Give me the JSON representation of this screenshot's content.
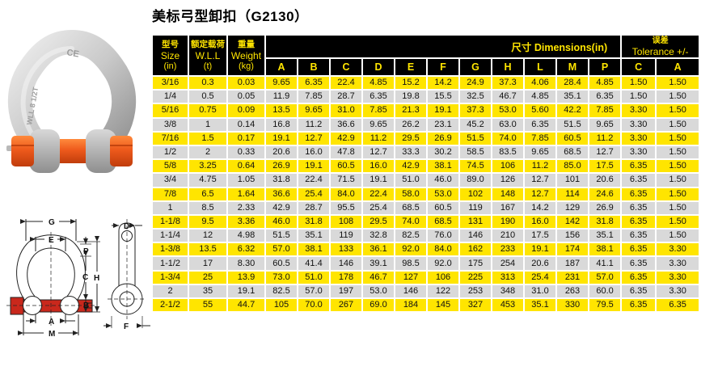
{
  "title": "美标弓型卸扣（G2130）",
  "colors": {
    "row_yellow": "#ffe500",
    "row_gray": "#d9d9d9",
    "header_bg": "#000000",
    "header_text": "#ffe500",
    "drawing_pin_red": "#c9281c",
    "photo_pin_orange": "#e8541e"
  },
  "photo": {
    "description": "galvanized bow shackle with orange safety bolt pin",
    "markings": {
      "ce": "CE",
      "wll": "WLL 8 1/2T"
    }
  },
  "diagram": {
    "description": "dimension drawing of bow shackle (front view) and pin (side view)",
    "labels": {
      "g": "G",
      "e": "E",
      "p": "P",
      "c": "C",
      "h": "H",
      "b": "B",
      "a": "A",
      "m": "M",
      "d": "D",
      "f": "F"
    }
  },
  "table": {
    "headers": {
      "size_zh": "型号",
      "size_en": "Size",
      "size_unit": "(in)",
      "wll_zh": "额定载荷",
      "wll_en": "W.L.L",
      "wll_unit": "(t)",
      "weight_zh": "重量",
      "weight_en": "Weight",
      "weight_unit": "(kg)",
      "dimensions": "尺寸  Dimensions(in)",
      "tolerance_zh": "误差",
      "tolerance_en": "Tolerance +/-",
      "dim_letters": [
        "A",
        "B",
        "C",
        "D",
        "E",
        "F",
        "G",
        "H",
        "L",
        "M",
        "P"
      ],
      "tol_letters": [
        "C",
        "A"
      ]
    },
    "rows": [
      [
        "3/16",
        "0.3",
        "0.03",
        "9.65",
        "6.35",
        "22.4",
        "4.85",
        "15.2",
        "14.2",
        "24.9",
        "37.3",
        "4.06",
        "28.4",
        "4.85",
        "1.50",
        "1.50"
      ],
      [
        "1/4",
        "0.5",
        "0.05",
        "11.9",
        "7.85",
        "28.7",
        "6.35",
        "19.8",
        "15.5",
        "32.5",
        "46.7",
        "4.85",
        "35.1",
        "6.35",
        "1.50",
        "1.50"
      ],
      [
        "5/16",
        "0.75",
        "0.09",
        "13.5",
        "9.65",
        "31.0",
        "7.85",
        "21.3",
        "19.1",
        "37.3",
        "53.0",
        "5.60",
        "42.2",
        "7.85",
        "3.30",
        "1.50"
      ],
      [
        "3/8",
        "1",
        "0.14",
        "16.8",
        "11.2",
        "36.6",
        "9.65",
        "26.2",
        "23.1",
        "45.2",
        "63.0",
        "6.35",
        "51.5",
        "9.65",
        "3.30",
        "1.50"
      ],
      [
        "7/16",
        "1.5",
        "0.17",
        "19.1",
        "12.7",
        "42.9",
        "11.2",
        "29.5",
        "26.9",
        "51.5",
        "74.0",
        "7.85",
        "60.5",
        "11.2",
        "3.30",
        "1.50"
      ],
      [
        "1/2",
        "2",
        "0.33",
        "20.6",
        "16.0",
        "47.8",
        "12.7",
        "33.3",
        "30.2",
        "58.5",
        "83.5",
        "9.65",
        "68.5",
        "12.7",
        "3.30",
        "1.50"
      ],
      [
        "5/8",
        "3.25",
        "0.64",
        "26.9",
        "19.1",
        "60.5",
        "16.0",
        "42.9",
        "38.1",
        "74.5",
        "106",
        "11.2",
        "85.0",
        "17.5",
        "6.35",
        "1.50"
      ],
      [
        "3/4",
        "4.75",
        "1.05",
        "31.8",
        "22.4",
        "71.5",
        "19.1",
        "51.0",
        "46.0",
        "89.0",
        "126",
        "12.7",
        "101",
        "20.6",
        "6.35",
        "1.50"
      ],
      [
        "7/8",
        "6.5",
        "1.64",
        "36.6",
        "25.4",
        "84.0",
        "22.4",
        "58.0",
        "53.0",
        "102",
        "148",
        "12.7",
        "114",
        "24.6",
        "6.35",
        "1.50"
      ],
      [
        "1",
        "8.5",
        "2.33",
        "42.9",
        "28.7",
        "95.5",
        "25.4",
        "68.5",
        "60.5",
        "119",
        "167",
        "14.2",
        "129",
        "26.9",
        "6.35",
        "1.50"
      ],
      [
        "1-1/8",
        "9.5",
        "3.36",
        "46.0",
        "31.8",
        "108",
        "29.5",
        "74.0",
        "68.5",
        "131",
        "190",
        "16.0",
        "142",
        "31.8",
        "6.35",
        "1.50"
      ],
      [
        "1-1/4",
        "12",
        "4.98",
        "51.5",
        "35.1",
        "119",
        "32.8",
        "82.5",
        "76.0",
        "146",
        "210",
        "17.5",
        "156",
        "35.1",
        "6.35",
        "1.50"
      ],
      [
        "1-3/8",
        "13.5",
        "6.32",
        "57.0",
        "38.1",
        "133",
        "36.1",
        "92.0",
        "84.0",
        "162",
        "233",
        "19.1",
        "174",
        "38.1",
        "6.35",
        "3.30"
      ],
      [
        "1-1/2",
        "17",
        "8.30",
        "60.5",
        "41.4",
        "146",
        "39.1",
        "98.5",
        "92.0",
        "175",
        "254",
        "20.6",
        "187",
        "41.1",
        "6.35",
        "3.30"
      ],
      [
        "1-3/4",
        "25",
        "13.9",
        "73.0",
        "51.0",
        "178",
        "46.7",
        "127",
        "106",
        "225",
        "313",
        "25.4",
        "231",
        "57.0",
        "6.35",
        "3.30"
      ],
      [
        "2",
        "35",
        "19.1",
        "82.5",
        "57.0",
        "197",
        "53.0",
        "146",
        "122",
        "253",
        "348",
        "31.0",
        "263",
        "60.0",
        "6.35",
        "3.30"
      ],
      [
        "2-1/2",
        "55",
        "44.7",
        "105",
        "70.0",
        "267",
        "69.0",
        "184",
        "145",
        "327",
        "453",
        "35.1",
        "330",
        "79.5",
        "6.35",
        "6.35"
      ]
    ]
  }
}
